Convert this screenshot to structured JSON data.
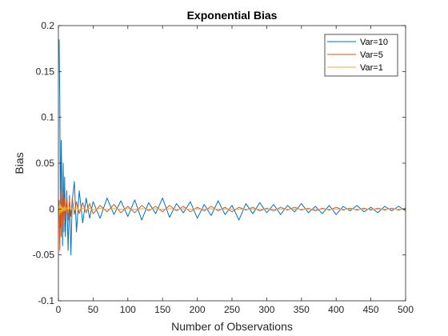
{
  "chart_data": {
    "type": "line",
    "title": "Exponential Bias",
    "xlabel": "Number of Observations",
    "ylabel": "Bias",
    "xlim": [
      0,
      500
    ],
    "ylim": [
      -0.1,
      0.2
    ],
    "grid": false,
    "legend_position": "top-right",
    "x_ticks": [
      0,
      50,
      100,
      150,
      200,
      250,
      300,
      350,
      400,
      450,
      500
    ],
    "x_tick_labels": [
      "0",
      "50",
      "100",
      "150",
      "200",
      "250",
      "300",
      "350",
      "400",
      "450",
      "500"
    ],
    "y_ticks": [
      -0.1,
      -0.05,
      0,
      0.05,
      0.1,
      0.15,
      0.2
    ],
    "y_tick_labels": [
      "-0.1",
      "-0.05",
      "0",
      "0.05",
      "0.1",
      "0.15",
      "0.2"
    ],
    "x": [
      1,
      2,
      3,
      4,
      5,
      6,
      7,
      8,
      9,
      10,
      12,
      14,
      16,
      18,
      20,
      23,
      26,
      30,
      35,
      40,
      45,
      50,
      60,
      70,
      80,
      90,
      100,
      110,
      120,
      130,
      140,
      150,
      160,
      170,
      180,
      190,
      200,
      210,
      220,
      230,
      240,
      250,
      260,
      270,
      280,
      290,
      300,
      310,
      320,
      330,
      340,
      350,
      360,
      370,
      380,
      390,
      400,
      410,
      420,
      430,
      440,
      450,
      460,
      470,
      480,
      490,
      500
    ],
    "series": [
      {
        "name": "Var=10",
        "color": "#0072BD",
        "values": [
          0.185,
          0.12,
          -0.02,
          0.075,
          0.03,
          -0.04,
          0.05,
          -0.025,
          0.035,
          -0.03,
          0.02,
          -0.045,
          0.015,
          -0.05,
          0.01,
          0.03,
          -0.025,
          0.02,
          -0.015,
          0.012,
          -0.01,
          0.008,
          -0.01,
          0.012,
          -0.006,
          0.009,
          -0.008,
          0.01,
          -0.012,
          0.007,
          -0.005,
          0.012,
          -0.009,
          0.006,
          -0.004,
          0.008,
          -0.01,
          0.005,
          -0.007,
          0.009,
          -0.006,
          0.004,
          -0.012,
          0.006,
          -0.005,
          0.007,
          -0.004,
          0.005,
          -0.006,
          0.004,
          -0.003,
          0.006,
          -0.004,
          0.003,
          -0.005,
          0.004,
          -0.006,
          0.003,
          -0.002,
          0.004,
          -0.003,
          0.002,
          -0.004,
          0.003,
          -0.002,
          0.003,
          -0.002
        ]
      },
      {
        "name": "Var=5",
        "color": "#D95319",
        "values": [
          0.01,
          -0.045,
          0.02,
          -0.03,
          0.025,
          -0.02,
          0.018,
          -0.015,
          0.012,
          -0.01,
          0.015,
          -0.012,
          0.01,
          -0.008,
          0.012,
          -0.006,
          0.008,
          -0.005,
          0.007,
          -0.004,
          0.006,
          -0.005,
          0.004,
          -0.003,
          0.005,
          -0.004,
          0.003,
          -0.004,
          0.004,
          -0.002,
          0.003,
          -0.003,
          0.004,
          -0.002,
          0.003,
          -0.003,
          0.002,
          -0.002,
          0.003,
          -0.002,
          0.002,
          -0.003,
          0.002,
          -0.001,
          0.002,
          -0.002,
          0.001,
          -0.002,
          0.002,
          -0.001,
          0.002,
          -0.001,
          0.001,
          -0.002,
          0.001,
          -0.001,
          0.002,
          -0.001,
          0.001,
          -0.001,
          0.001,
          -0.001,
          0.001,
          -0.001,
          0.001,
          -0.001,
          0.001
        ]
      },
      {
        "name": "Var=1",
        "color": "#EDB120",
        "values": [
          0.004,
          -0.006,
          0.005,
          -0.004,
          0.003,
          -0.003,
          0.002,
          -0.002,
          0.003,
          -0.002,
          0.002,
          -0.001,
          0.002,
          -0.001,
          0.001,
          -0.001,
          0.001,
          -0.001,
          0.001,
          -0.0008,
          0.0008,
          -0.0006,
          0.0006,
          -0.0005,
          0.0005,
          -0.0004,
          0.0004,
          -0.0004,
          0.0004,
          -0.0003,
          0.0003,
          -0.0003,
          0.0003,
          -0.0003,
          0.0002,
          -0.0002,
          0.0002,
          -0.0002,
          0.0002,
          -0.0002,
          0.0002,
          -0.0001,
          0.0001,
          -0.0001,
          0.0001,
          -0.0001,
          0.0001,
          -0.0001,
          0.0001,
          -0.0001,
          0.0001,
          -0.0001,
          0.0001,
          -0.0001,
          0.0001,
          -0.0001,
          0.0001,
          -0.0001,
          0.0001,
          -0.0001,
          0.0001,
          -0.0001,
          0.0001,
          -0.0001,
          0.0001,
          -0.0001,
          0.0001
        ]
      }
    ]
  }
}
